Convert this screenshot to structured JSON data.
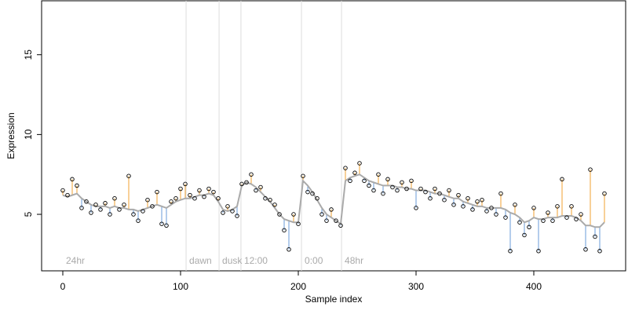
{
  "chart_data": {
    "type": "scatter",
    "x_label": "Sample index",
    "y_label": "Expression",
    "xlim": [
      -18,
      478
    ],
    "ylim": [
      1.46,
      18.38
    ],
    "xticks": [
      0,
      100,
      200,
      300,
      400
    ],
    "yticks": [
      5,
      10,
      15
    ],
    "vlines": [
      104.7,
      132.7,
      151.3,
      202.7,
      236.7
    ],
    "annotations": [
      {
        "x": 0,
        "label": "24hr"
      },
      {
        "x": 104.7,
        "label": "dawn"
      },
      {
        "x": 132.7,
        "label": "dusk"
      },
      {
        "x": 151.3,
        "label": "12:00"
      },
      {
        "x": 202.7,
        "label": "0:00"
      },
      {
        "x": 236.7,
        "label": "48hr"
      }
    ],
    "point_color": "#000000",
    "fit_color": "#aaaaaa",
    "above_color": "#f0a030",
    "below_color": "#6a9bd8",
    "x": [
      0,
      4,
      8,
      12,
      16,
      20,
      24,
      28,
      32,
      36,
      40,
      44,
      48,
      52,
      56,
      60,
      64,
      68,
      72,
      76,
      80,
      84,
      88,
      92,
      96,
      100,
      104,
      108,
      112,
      116,
      120,
      124,
      128,
      132,
      136,
      140,
      144,
      148,
      152,
      156,
      160,
      164,
      168,
      172,
      176,
      180,
      184,
      188,
      192,
      196,
      200,
      204,
      208,
      212,
      216,
      220,
      224,
      228,
      232,
      236,
      240,
      244,
      248,
      252,
      256,
      260,
      264,
      268,
      272,
      276,
      280,
      284,
      288,
      292,
      296,
      300,
      304,
      308,
      312,
      316,
      320,
      324,
      328,
      332,
      336,
      340,
      344,
      348,
      352,
      356,
      360,
      364,
      368,
      372,
      376,
      380,
      384,
      388,
      392,
      396,
      400,
      404,
      408,
      412,
      416,
      420,
      424,
      428,
      432,
      436,
      440,
      444,
      448,
      452,
      456,
      460
    ],
    "values": [
      6.5,
      6.2,
      7.2,
      6.8,
      5.4,
      5.8,
      5.1,
      5.6,
      5.3,
      5.7,
      5.0,
      6.0,
      5.3,
      5.6,
      7.4,
      5.0,
      4.6,
      5.2,
      5.9,
      5.5,
      6.4,
      4.4,
      4.3,
      5.8,
      6.0,
      6.6,
      6.9,
      6.2,
      6.0,
      6.5,
      6.1,
      6.6,
      6.4,
      6.0,
      5.1,
      5.5,
      5.2,
      4.9,
      6.9,
      7.0,
      7.5,
      6.5,
      6.7,
      6.0,
      5.9,
      5.6,
      5.0,
      4.0,
      2.8,
      5.0,
      4.4,
      7.4,
      6.4,
      6.3,
      6.0,
      5.0,
      4.6,
      5.3,
      4.6,
      4.3,
      7.9,
      7.1,
      7.6,
      8.2,
      7.1,
      6.8,
      6.5,
      7.5,
      6.3,
      7.2,
      6.7,
      6.5,
      7.0,
      6.6,
      7.1,
      5.4,
      6.6,
      6.4,
      6.0,
      6.6,
      6.3,
      5.9,
      6.5,
      5.6,
      6.2,
      5.5,
      6.0,
      5.3,
      5.8,
      5.9,
      5.2,
      5.4,
      5.0,
      6.3,
      4.8,
      2.7,
      5.6,
      4.5,
      3.7,
      4.2,
      5.4,
      2.7,
      4.6,
      5.1,
      4.6,
      5.5,
      7.2,
      4.8,
      5.5,
      4.7,
      5.0,
      2.8,
      7.8,
      3.6,
      2.7,
      6.3
    ],
    "fit": [
      6.2,
      6.1,
      6.2,
      6.3,
      6.0,
      5.8,
      5.6,
      5.5,
      5.5,
      5.5,
      5.4,
      5.5,
      5.4,
      5.4,
      5.3,
      5.3,
      5.2,
      5.3,
      5.4,
      5.5,
      5.6,
      5.5,
      5.4,
      5.6,
      5.8,
      5.9,
      6.0,
      6.0,
      6.1,
      6.2,
      6.2,
      6.3,
      6.2,
      5.8,
      5.3,
      5.2,
      5.3,
      5.5,
      6.8,
      7.0,
      6.9,
      6.7,
      6.4,
      6.1,
      5.8,
      5.4,
      5.0,
      4.7,
      4.6,
      4.5,
      4.5,
      7.1,
      6.8,
      6.4,
      5.9,
      5.4,
      5.0,
      4.8,
      4.6,
      4.4,
      7.1,
      7.3,
      7.4,
      7.5,
      7.3,
      7.1,
      7.0,
      6.9,
      6.8,
      6.8,
      6.8,
      6.7,
      6.7,
      6.6,
      6.6,
      6.5,
      6.5,
      6.5,
      6.4,
      6.3,
      6.3,
      6.2,
      6.1,
      6.0,
      6.0,
      5.8,
      5.7,
      5.6,
      5.5,
      5.5,
      5.4,
      5.4,
      5.4,
      5.4,
      5.3,
      5.1,
      5.0,
      4.8,
      4.5,
      4.6,
      4.8,
      4.7,
      4.7,
      4.8,
      4.8,
      4.8,
      4.9,
      4.9,
      4.9,
      4.8,
      4.6,
      4.3,
      4.3,
      4.2,
      4.2,
      4.5
    ]
  }
}
